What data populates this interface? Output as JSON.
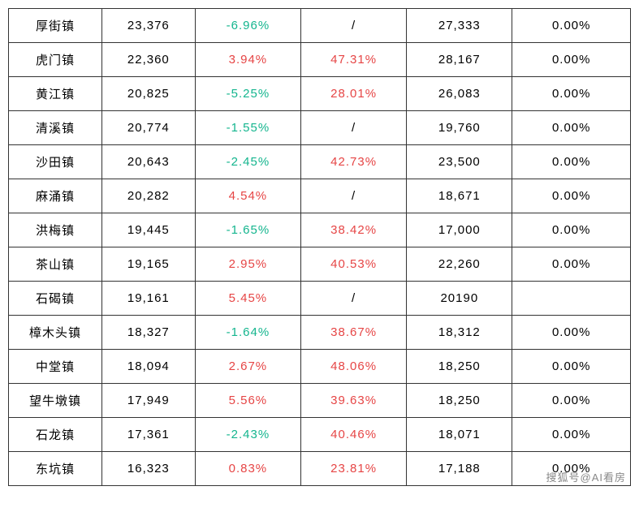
{
  "table": {
    "columns": [
      {
        "key": "town",
        "width": "15%",
        "align": "center",
        "color": "default"
      },
      {
        "key": "price",
        "width": "15%",
        "align": "center",
        "color": "default"
      },
      {
        "key": "mom",
        "width": "17%",
        "align": "center",
        "color": "signed"
      },
      {
        "key": "yoy",
        "width": "17%",
        "align": "center",
        "color": "red-or-slash"
      },
      {
        "key": "price2",
        "width": "17%",
        "align": "center",
        "color": "default"
      },
      {
        "key": "pct2",
        "width": "19%",
        "align": "center",
        "color": "default"
      }
    ],
    "text_colors": {
      "default": "#000000",
      "negative": "#14b58e",
      "positive": "#e64545",
      "slash": "#000000"
    },
    "rows": [
      {
        "town": "厚街镇",
        "price": "23,376",
        "mom": "-6.96%",
        "yoy": "/",
        "price2": "27,333",
        "pct2": "0.00%"
      },
      {
        "town": "虎门镇",
        "price": "22,360",
        "mom": "3.94%",
        "yoy": "47.31%",
        "price2": "28,167",
        "pct2": "0.00%"
      },
      {
        "town": "黄江镇",
        "price": "20,825",
        "mom": "-5.25%",
        "yoy": "28.01%",
        "price2": "26,083",
        "pct2": "0.00%"
      },
      {
        "town": "清溪镇",
        "price": "20,774",
        "mom": "-1.55%",
        "yoy": "/",
        "price2": "19,760",
        "pct2": "0.00%"
      },
      {
        "town": "沙田镇",
        "price": "20,643",
        "mom": "-2.45%",
        "yoy": "42.73%",
        "price2": "23,500",
        "pct2": "0.00%"
      },
      {
        "town": "麻涌镇",
        "price": "20,282",
        "mom": "4.54%",
        "yoy": "/",
        "price2": "18,671",
        "pct2": "0.00%"
      },
      {
        "town": "洪梅镇",
        "price": "19,445",
        "mom": "-1.65%",
        "yoy": "38.42%",
        "price2": "17,000",
        "pct2": "0.00%"
      },
      {
        "town": "茶山镇",
        "price": "19,165",
        "mom": "2.95%",
        "yoy": "40.53%",
        "price2": "22,260",
        "pct2": "0.00%"
      },
      {
        "town": "石碣镇",
        "price": "19,161",
        "mom": "5.45%",
        "yoy": "/",
        "price2": "20190",
        "pct2": ""
      },
      {
        "town": "樟木头镇",
        "price": "18,327",
        "mom": "-1.64%",
        "yoy": "38.67%",
        "price2": "18,312",
        "pct2": "0.00%"
      },
      {
        "town": "中堂镇",
        "price": "18,094",
        "mom": "2.67%",
        "yoy": "48.06%",
        "price2": "18,250",
        "pct2": "0.00%"
      },
      {
        "town": "望牛墩镇",
        "price": "17,949",
        "mom": "5.56%",
        "yoy": "39.63%",
        "price2": "18,250",
        "pct2": "0.00%"
      },
      {
        "town": "石龙镇",
        "price": "17,361",
        "mom": "-2.43%",
        "yoy": "40.46%",
        "price2": "18,071",
        "pct2": "0.00%"
      },
      {
        "town": "东坑镇",
        "price": "16,323",
        "mom": "0.83%",
        "yoy": "23.81%",
        "price2": "17,188",
        "pct2": "0.00%"
      }
    ]
  },
  "watermark": "搜狐号@AI看房"
}
